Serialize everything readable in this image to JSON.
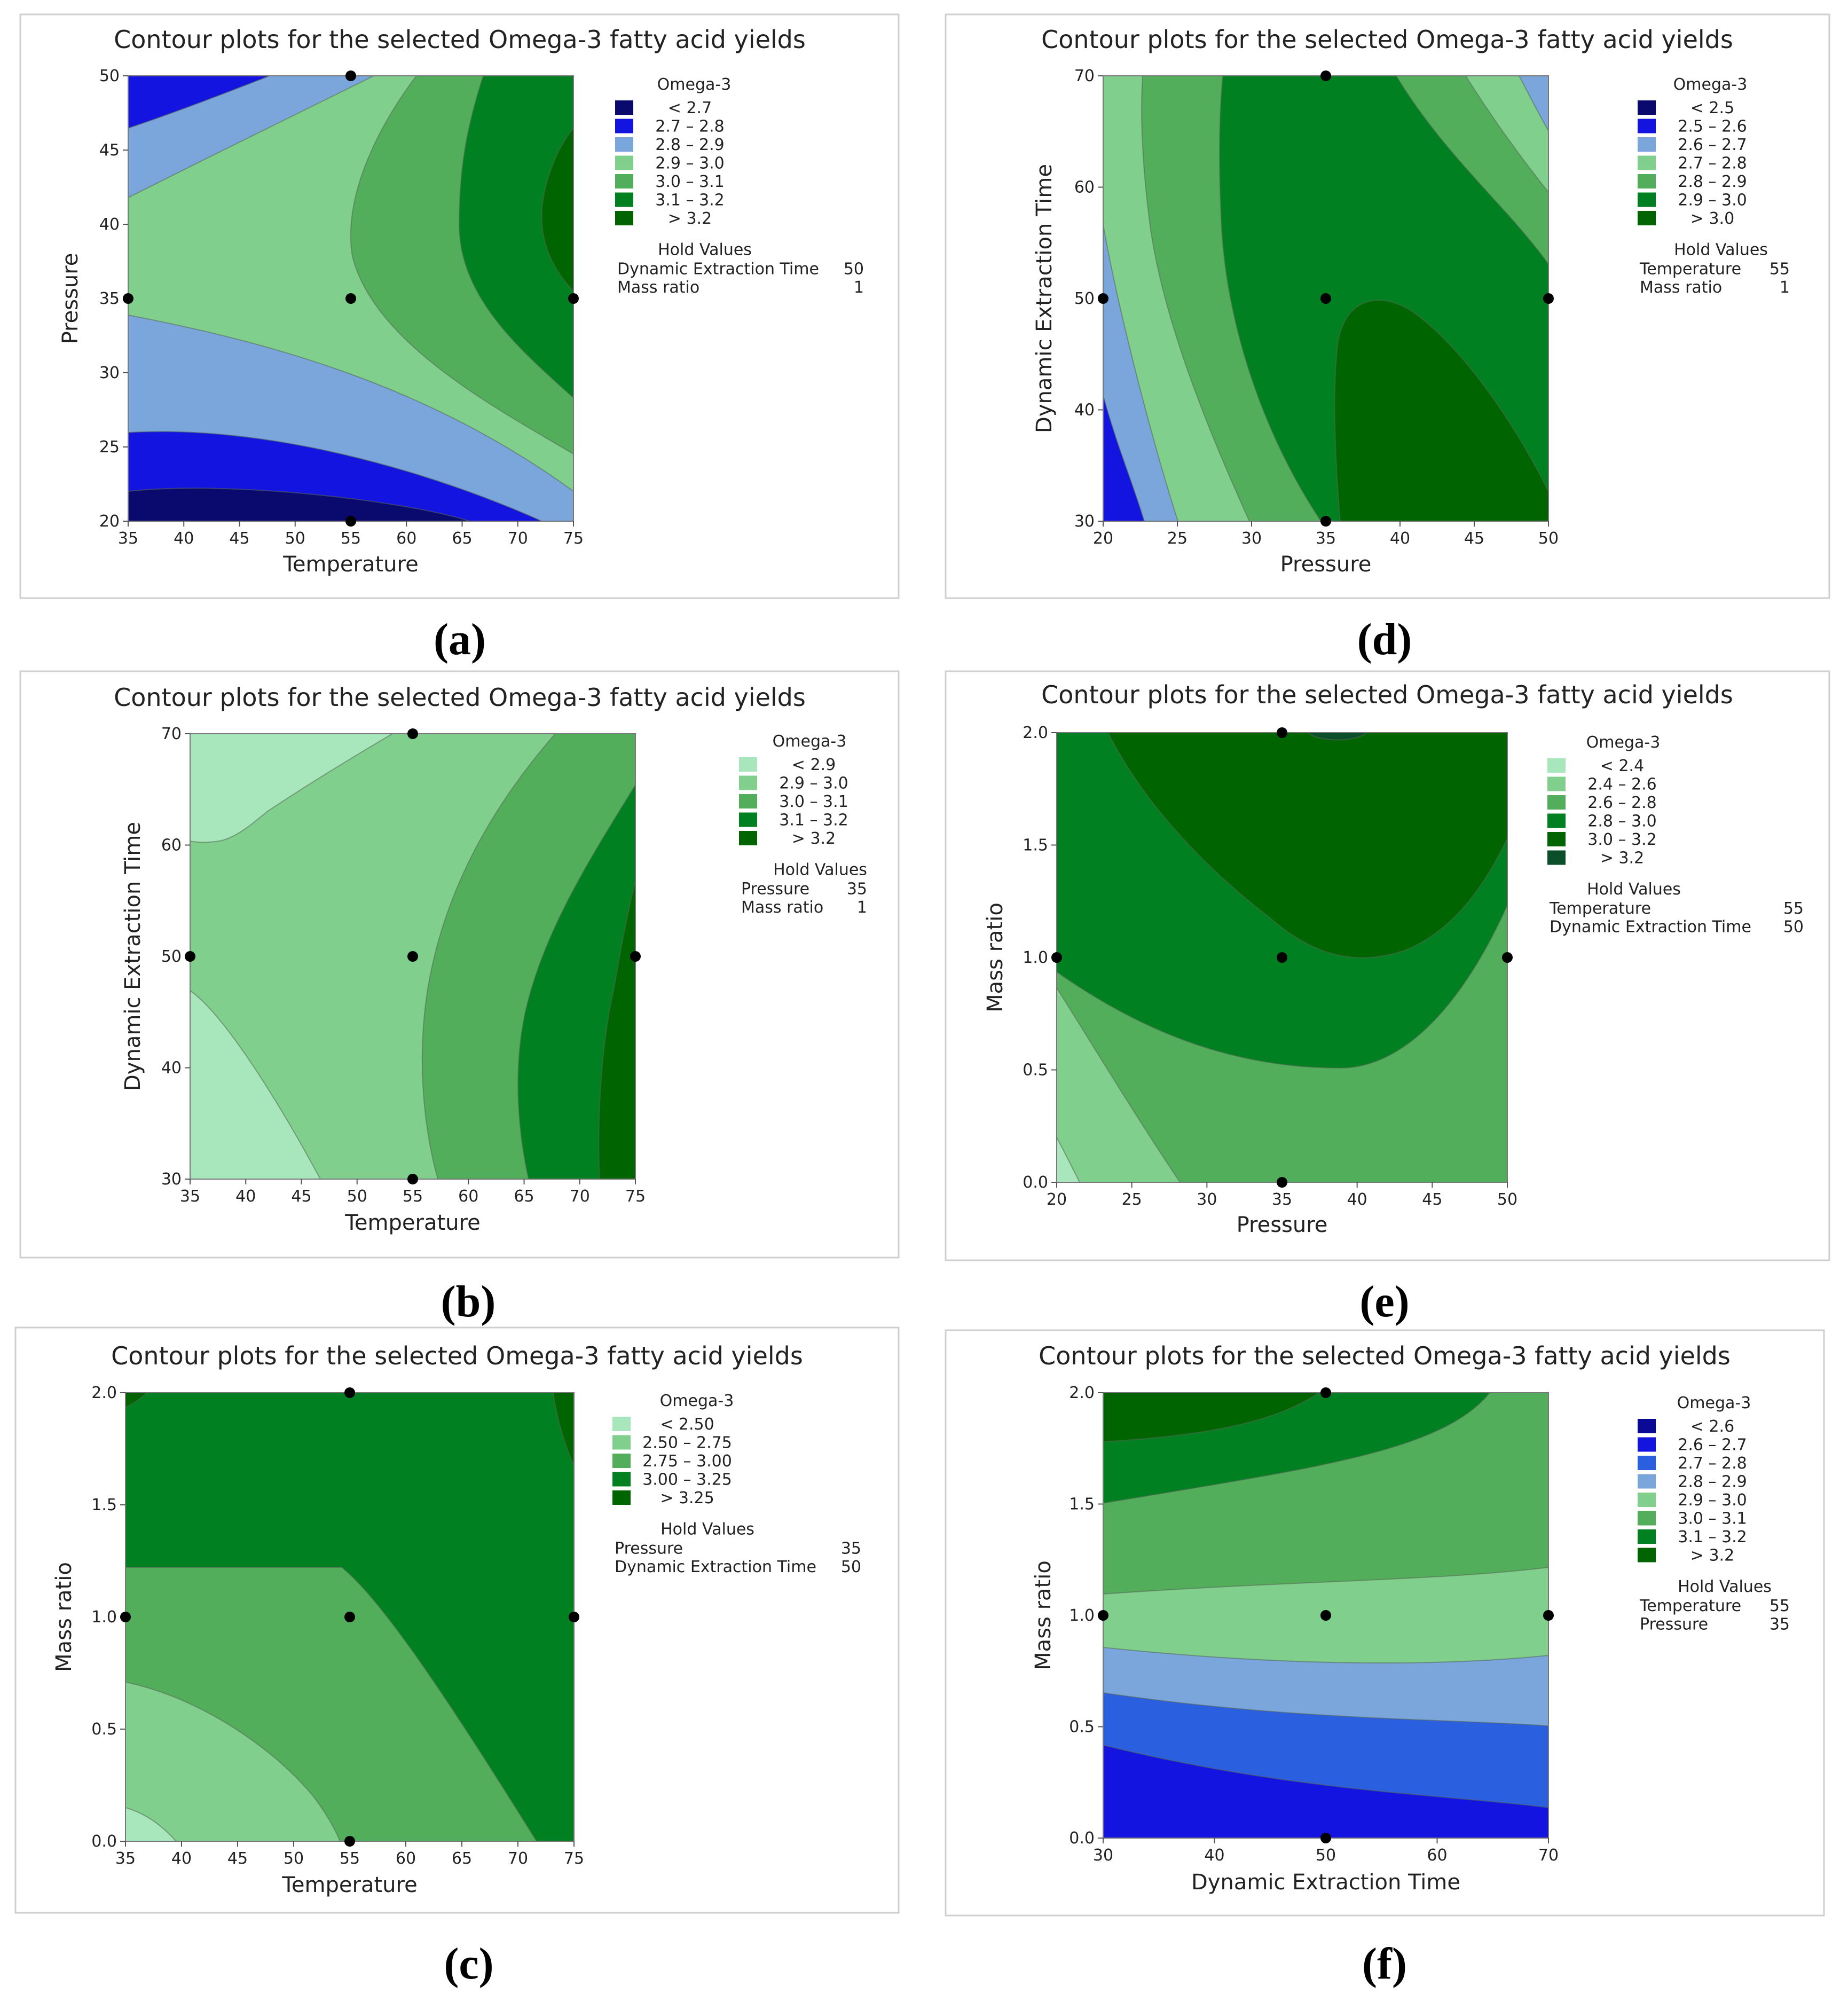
{
  "chart_data": [
    {
      "panel": "(a)",
      "type": "contour",
      "title": "Contour plots for the selected Omega-3 fatty acid yields",
      "xlabel": "Temperature",
      "ylabel": "Pressure",
      "xticks": [
        35,
        40,
        45,
        50,
        55,
        60,
        65,
        70,
        75
      ],
      "yticks": [
        20,
        25,
        30,
        35,
        40,
        45,
        50
      ],
      "xlim": [
        35,
        75
      ],
      "ylim": [
        20,
        50
      ],
      "legend_title": "Omega-3",
      "levels": [
        "<  2.7",
        "2.7  –  2.8",
        "2.8  –  2.9",
        "2.9  –  3.0",
        "3.0  –  3.1",
        "3.1  –  3.2",
        ">  3.2"
      ],
      "colors": [
        "#0a0a6e",
        "#1414e0",
        "#7aa6dc",
        "#80cf8c",
        "#52ae5a",
        "#008020",
        "#006400"
      ],
      "hold_title": "Hold Values",
      "hold": [
        {
          "name": "Dynamic Extraction Time",
          "value": "50"
        },
        {
          "name": "Mass ratio",
          "value": "1"
        }
      ],
      "design_points": [
        [
          35,
          35
        ],
        [
          55,
          35
        ],
        [
          75,
          35
        ],
        [
          55,
          20
        ],
        [
          55,
          50
        ]
      ]
    },
    {
      "panel": "(b)",
      "type": "contour",
      "title": "Contour plots for the selected Omega-3 fatty acid yields",
      "xlabel": "Temperature",
      "ylabel": "Dynamic Extraction Time",
      "xticks": [
        35,
        40,
        45,
        50,
        55,
        60,
        65,
        70,
        75
      ],
      "yticks": [
        30,
        40,
        50,
        60,
        70
      ],
      "xlim": [
        35,
        75
      ],
      "ylim": [
        30,
        70
      ],
      "legend_title": "Omega-3",
      "levels": [
        "<  2.9",
        "2.9  –  3.0",
        "3.0  –  3.1",
        "3.1  –  3.2",
        ">  3.2"
      ],
      "colors": [
        "#a8e6bc",
        "#80cf8c",
        "#52ae5a",
        "#008020",
        "#006400"
      ],
      "hold_title": "Hold Values",
      "hold": [
        {
          "name": "Pressure",
          "value": "35"
        },
        {
          "name": "Mass ratio",
          "value": "1"
        }
      ],
      "design_points": [
        [
          35,
          50
        ],
        [
          55,
          50
        ],
        [
          75,
          50
        ],
        [
          55,
          30
        ],
        [
          55,
          70
        ]
      ]
    },
    {
      "panel": "(c)",
      "type": "contour",
      "title": "Contour plots for the selected Omega-3 fatty acid yields",
      "xlabel": "Temperature",
      "ylabel": "Mass ratio",
      "xticks": [
        35,
        40,
        45,
        50,
        55,
        60,
        65,
        70,
        75
      ],
      "yticks": [
        "0.0",
        "0.5",
        "1.0",
        "1.5",
        "2.0"
      ],
      "xlim": [
        35,
        75
      ],
      "ylim": [
        0,
        2
      ],
      "legend_title": "Omega-3",
      "levels": [
        "<  2.50",
        "2.50  –  2.75",
        "2.75  –  3.00",
        "3.00  –  3.25",
        ">  3.25"
      ],
      "colors": [
        "#a8e6bc",
        "#80cf8c",
        "#52ae5a",
        "#008020",
        "#006400"
      ],
      "hold_title": "Hold Values",
      "hold": [
        {
          "name": "Pressure",
          "value": "35"
        },
        {
          "name": "Dynamic Extraction Time",
          "value": "50"
        }
      ],
      "design_points": [
        [
          35,
          1
        ],
        [
          55,
          1
        ],
        [
          75,
          1
        ],
        [
          55,
          0
        ],
        [
          55,
          2
        ]
      ]
    },
    {
      "panel": "(d)",
      "type": "contour",
      "title": "Contour plots for the selected Omega-3 fatty acid yields",
      "xlabel": "Pressure",
      "ylabel": "Dynamic Extraction Time",
      "xticks": [
        20,
        25,
        30,
        35,
        40,
        45,
        50
      ],
      "yticks": [
        30,
        40,
        50,
        60,
        70
      ],
      "xlim": [
        20,
        50
      ],
      "ylim": [
        30,
        70
      ],
      "legend_title": "Omega-3",
      "levels": [
        "<  2.5",
        "2.5  –  2.6",
        "2.6  –  2.7",
        "2.7  –  2.8",
        "2.8  –  2.9",
        "2.9  –  3.0",
        ">  3.0"
      ],
      "colors": [
        "#0a0a6e",
        "#1414e0",
        "#7aa6dc",
        "#80cf8c",
        "#52ae5a",
        "#008020",
        "#006400"
      ],
      "hold_title": "Hold Values",
      "hold": [
        {
          "name": "Temperature",
          "value": "55"
        },
        {
          "name": "Mass ratio",
          "value": "1"
        }
      ],
      "design_points": [
        [
          20,
          50
        ],
        [
          35,
          50
        ],
        [
          50,
          50
        ],
        [
          35,
          30
        ],
        [
          35,
          70
        ]
      ]
    },
    {
      "panel": "(e)",
      "type": "contour",
      "title": "Contour plots for the selected Omega-3 fatty acid yields",
      "xlabel": "Pressure",
      "ylabel": "Mass ratio",
      "xticks": [
        20,
        25,
        30,
        35,
        40,
        45,
        50
      ],
      "yticks": [
        "0.0",
        "0.5",
        "1.0",
        "1.5",
        "2.0"
      ],
      "xlim": [
        20,
        50
      ],
      "ylim": [
        0,
        2
      ],
      "legend_title": "Omega-3",
      "levels": [
        "<  2.4",
        "2.4  –  2.6",
        "2.6  –  2.8",
        "2.8  –  3.0",
        "3.0  –  3.2",
        ">  3.2"
      ],
      "colors": [
        "#a8e6bc",
        "#80cf8c",
        "#52ae5a",
        "#008020",
        "#006400",
        "#0a4f2a"
      ],
      "hold_title": "Hold Values",
      "hold": [
        {
          "name": "Temperature",
          "value": "55"
        },
        {
          "name": "Dynamic Extraction Time",
          "value": "50"
        }
      ],
      "design_points": [
        [
          20,
          1
        ],
        [
          35,
          1
        ],
        [
          50,
          1
        ],
        [
          35,
          0
        ],
        [
          35,
          2
        ]
      ]
    },
    {
      "panel": "(f)",
      "type": "contour",
      "title": "Contour plots for the selected Omega-3 fatty acid yields",
      "xlabel": "Dynamic Extraction Time",
      "ylabel": "Mass ratio",
      "xticks": [
        30,
        40,
        50,
        60,
        70
      ],
      "yticks": [
        "0.0",
        "0.5",
        "1.0",
        "1.5",
        "2.0"
      ],
      "xlim": [
        30,
        70
      ],
      "ylim": [
        0,
        2
      ],
      "legend_title": "Omega-3",
      "levels": [
        "<  2.6",
        "2.6  –  2.7",
        "2.7  –  2.8",
        "2.8  –  2.9",
        "2.9  –  3.0",
        "3.0  –  3.1",
        "3.1  –  3.2",
        ">  3.2"
      ],
      "colors": [
        "#0a0a96",
        "#1414e0",
        "#2a5fe0",
        "#7aa6dc",
        "#80cf8c",
        "#52ae5a",
        "#008020",
        "#006400"
      ],
      "hold_title": "Hold Values",
      "hold": [
        {
          "name": "Temperature",
          "value": "55"
        },
        {
          "name": "Pressure",
          "value": "35"
        }
      ],
      "design_points": [
        [
          30,
          1
        ],
        [
          50,
          1
        ],
        [
          70,
          1
        ],
        [
          50,
          0
        ],
        [
          50,
          2
        ]
      ]
    }
  ]
}
